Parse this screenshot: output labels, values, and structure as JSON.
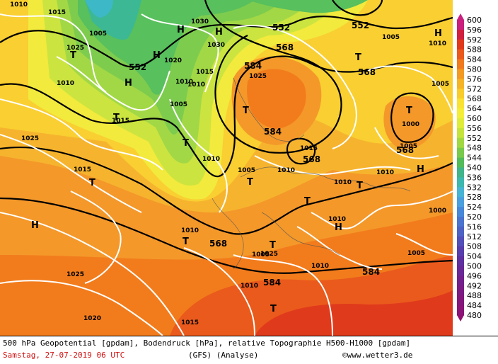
{
  "map": {
    "pressure_labels": [
      "1010",
      "1015",
      "1005",
      "1030",
      "1030",
      "1025",
      "1015",
      "1020",
      "1010",
      "1005",
      "1010",
      "1015",
      "1025",
      "1005",
      "1010",
      "1015",
      "1010",
      "1005",
      "1010",
      "1010",
      "1000",
      "1005",
      "1010",
      "1025",
      "1020",
      "1015",
      "1010",
      "1000",
      "1010",
      "1025",
      "1015",
      "1005",
      "1005",
      "1010",
      "1010",
      "1025",
      "1010",
      "1005"
    ],
    "geo_labels": [
      "552",
      "552",
      "568",
      "552",
      "568",
      "584",
      "584",
      "568",
      "568",
      "568",
      "584",
      "584"
    ],
    "high_markers": [
      "H",
      "H",
      "H",
      "H",
      "H",
      "H",
      "H",
      "H"
    ],
    "low_markers": [
      "T",
      "T",
      "T",
      "T",
      "T",
      "T",
      "T",
      "T",
      "T",
      "T",
      "T",
      "T",
      "T"
    ]
  },
  "legend": {
    "values": [
      "600",
      "596",
      "592",
      "588",
      "584",
      "580",
      "576",
      "572",
      "568",
      "564",
      "560",
      "556",
      "552",
      "548",
      "544",
      "540",
      "536",
      "532",
      "528",
      "524",
      "520",
      "516",
      "512",
      "508",
      "504",
      "500",
      "496",
      "492",
      "488",
      "484",
      "480"
    ],
    "colors": [
      "#c8207c",
      "#d02040",
      "#e03a1c",
      "#ea5a1c",
      "#f07a1e",
      "#f29a22",
      "#f5b326",
      "#f8cc2a",
      "#fae232",
      "#f4ee38",
      "#e0ec3a",
      "#c4e43c",
      "#a0d842",
      "#78ca4c",
      "#52bc5a",
      "#40b48a",
      "#3cb8ae",
      "#48b4d4",
      "#4aa0dc",
      "#4888d8",
      "#4a74ce",
      "#4e62c4",
      "#5250b8",
      "#583eac",
      "#5e30a0",
      "#682896",
      "#72208c",
      "#7a1c84",
      "#82187c",
      "#8a1478",
      "#901070"
    ]
  },
  "footer": {
    "line1": "500 hPa Geopotential [gpdam], Bodendruck [hPa], relative Topographie H500-H1000 [gpdam]",
    "date": "Samstag, 27-07-2019  06 UTC",
    "model": "(GFS)  (Analyse)",
    "copyright": "©www.wetter3.de"
  }
}
